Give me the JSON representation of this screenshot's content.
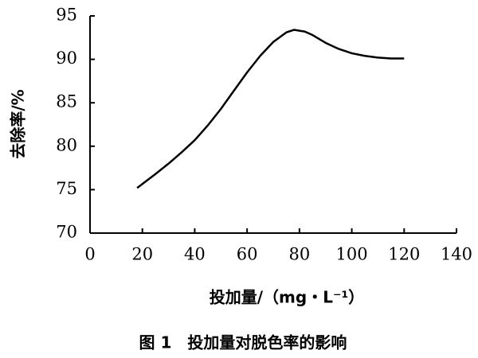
{
  "chart_data": {
    "type": "line",
    "title": "图 1　投加量对脱色率的影响",
    "x_label": "投加量/（mg・L⁻¹）",
    "y_label": "去除率/%",
    "x": [
      18,
      25,
      30,
      35,
      40,
      45,
      50,
      55,
      60,
      65,
      70,
      75,
      78,
      82,
      85,
      90,
      95,
      100,
      105,
      110,
      115,
      120
    ],
    "series": [
      {
        "name": "去除率",
        "color": "#000000",
        "values": [
          75.2,
          76.8,
          78.0,
          79.3,
          80.7,
          82.4,
          84.3,
          86.4,
          88.5,
          90.4,
          92.0,
          93.1,
          93.4,
          93.2,
          92.8,
          91.9,
          91.2,
          90.7,
          90.4,
          90.2,
          90.1,
          90.1
        ]
      }
    ],
    "xlim": [
      0,
      140
    ],
    "xticks": [
      0,
      20,
      40,
      60,
      80,
      100,
      120,
      140
    ],
    "ylim": [
      70,
      95
    ],
    "yticks": [
      70,
      75,
      80,
      85,
      90,
      95
    ],
    "grid": false
  }
}
